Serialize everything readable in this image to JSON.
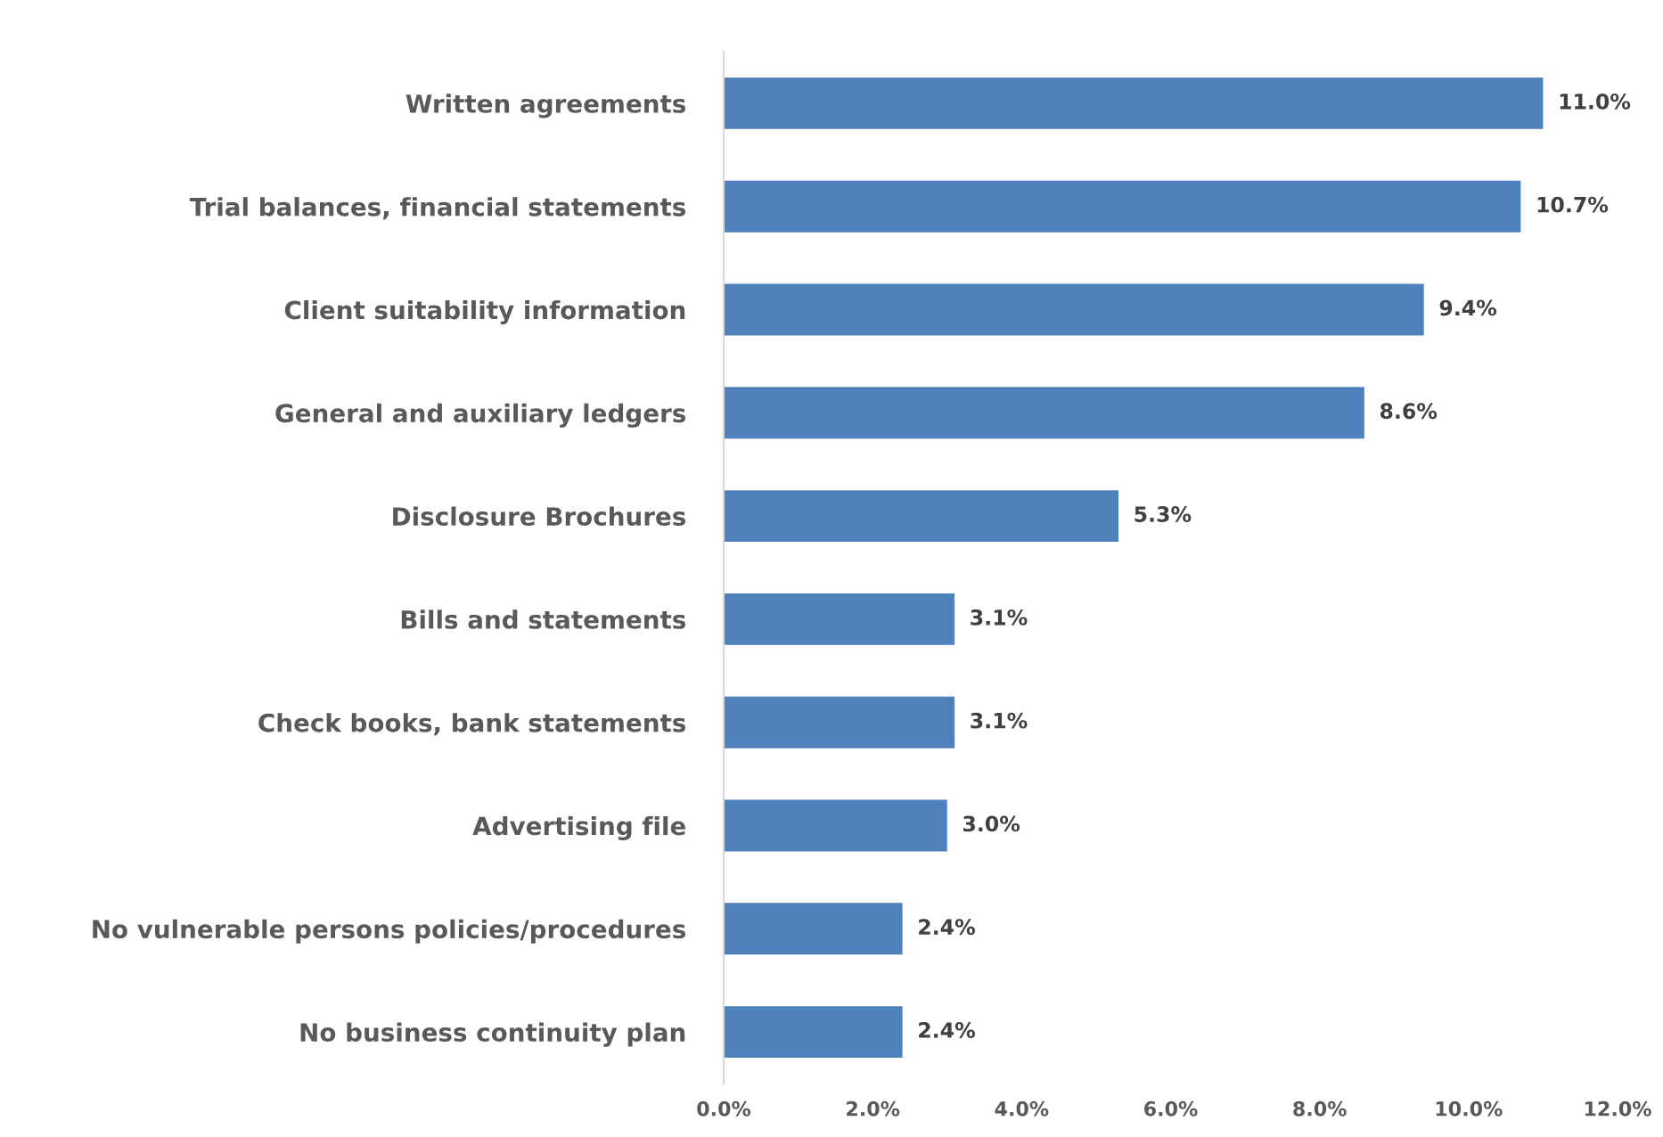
{
  "chart_data": {
    "type": "bar",
    "orientation": "horizontal",
    "categories": [
      "Written agreements",
      "Trial balances, financial statements",
      "Client suitability information",
      "General and auxiliary ledgers",
      "Disclosure Brochures",
      "Bills and statements",
      "Check books, bank statements",
      "Advertising file",
      "No vulnerable persons policies/procedures",
      "No business continuity plan"
    ],
    "values": [
      11.0,
      10.7,
      9.4,
      8.6,
      5.3,
      3.1,
      3.1,
      3.0,
      2.4,
      2.4
    ],
    "value_labels": [
      "11.0%",
      "10.7%",
      "9.4%",
      "8.6%",
      "5.3%",
      "3.1%",
      "3.1%",
      "3.0%",
      "2.4%",
      "2.4%"
    ],
    "color": "#4f81bd",
    "xlim": [
      0,
      12
    ],
    "xticks": [
      {
        "value": 0,
        "label": "0.0%"
      },
      {
        "value": 2,
        "label": "2.0%"
      },
      {
        "value": 4,
        "label": "4.0%"
      },
      {
        "value": 6,
        "label": "6.0%"
      },
      {
        "value": 8,
        "label": "8.0%"
      },
      {
        "value": 10,
        "label": "10.0%"
      },
      {
        "value": 12,
        "label": "12.0%"
      }
    ],
    "grid": false,
    "legend": false
  }
}
